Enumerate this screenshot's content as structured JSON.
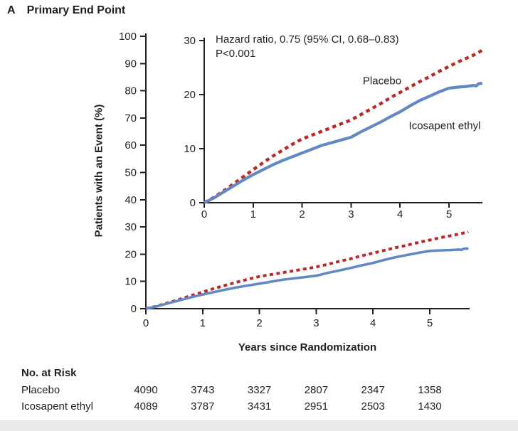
{
  "title": {
    "panel_letter": "A",
    "text": "Primary End Point"
  },
  "annotation": {
    "line1": "Hazard ratio, 0.75 (95% CI, 0.68–0.83)",
    "line2": "P<0.001"
  },
  "axes": {
    "ylabel": "Patients with an Event (%)",
    "xlabel": "Years since Randomization"
  },
  "curve_labels": {
    "placebo": "Placebo",
    "icosapent": "Icosapent ethyl"
  },
  "colors": {
    "placebo_red": "#bb2a26",
    "icosapent_blue": "#6389c5",
    "axis_and_text": "#231f20",
    "footer_band": "#e9e9e9"
  },
  "chart_data": {
    "type": "line",
    "title": "Primary End Point",
    "xlabel": "Years since Randomization",
    "ylabel": "Patients with an Event (%)",
    "legend_position": "inline-curve-labels",
    "grid": false,
    "series": [
      {
        "name": "Placebo",
        "style": "dashed",
        "color": "#bb2a26",
        "points": [
          [
            0,
            0
          ],
          [
            0.2,
            1.0
          ],
          [
            0.4,
            2.2
          ],
          [
            0.6,
            3.5
          ],
          [
            0.8,
            4.8
          ],
          [
            1.0,
            6.1
          ],
          [
            1.2,
            7.4
          ],
          [
            1.4,
            8.6
          ],
          [
            1.6,
            9.7
          ],
          [
            1.8,
            10.8
          ],
          [
            2.0,
            11.8
          ],
          [
            2.2,
            12.5
          ],
          [
            2.4,
            13.2
          ],
          [
            2.6,
            13.9
          ],
          [
            2.8,
            14.6
          ],
          [
            3.0,
            15.3
          ],
          [
            3.2,
            16.3
          ],
          [
            3.4,
            17.3
          ],
          [
            3.6,
            18.3
          ],
          [
            3.8,
            19.4
          ],
          [
            4.0,
            20.4
          ],
          [
            4.2,
            21.4
          ],
          [
            4.4,
            22.4
          ],
          [
            4.6,
            23.3
          ],
          [
            4.8,
            24.3
          ],
          [
            5.0,
            25.2
          ],
          [
            5.2,
            26.1
          ],
          [
            5.35,
            26.7
          ],
          [
            5.5,
            27.3
          ],
          [
            5.6,
            27.8
          ],
          [
            5.68,
            28.2
          ]
        ]
      },
      {
        "name": "Icosapent ethyl",
        "style": "solid",
        "color": "#6389c5",
        "points": [
          [
            0,
            0
          ],
          [
            0.2,
            0.9
          ],
          [
            0.4,
            2.0
          ],
          [
            0.6,
            3.1
          ],
          [
            0.8,
            4.2
          ],
          [
            1.0,
            5.2
          ],
          [
            1.2,
            6.1
          ],
          [
            1.4,
            7.0
          ],
          [
            1.6,
            7.8
          ],
          [
            1.8,
            8.5
          ],
          [
            2.0,
            9.2
          ],
          [
            2.2,
            9.9
          ],
          [
            2.4,
            10.6
          ],
          [
            2.6,
            11.1
          ],
          [
            2.8,
            11.6
          ],
          [
            3.0,
            12.1
          ],
          [
            3.2,
            13.1
          ],
          [
            3.4,
            14.0
          ],
          [
            3.6,
            14.9
          ],
          [
            3.8,
            15.9
          ],
          [
            4.0,
            16.8
          ],
          [
            4.2,
            17.9
          ],
          [
            4.4,
            18.9
          ],
          [
            4.6,
            19.7
          ],
          [
            4.8,
            20.5
          ],
          [
            5.0,
            21.2
          ],
          [
            5.2,
            21.4
          ],
          [
            5.35,
            21.5
          ],
          [
            5.5,
            21.7
          ],
          [
            5.56,
            21.6
          ],
          [
            5.6,
            22.0
          ],
          [
            5.68,
            22.1
          ]
        ]
      }
    ],
    "views": [
      {
        "id": "main",
        "xlim": [
          0,
          5.7
        ],
        "ylim": [
          0,
          100
        ],
        "x_ticks": [
          0,
          1,
          2,
          3,
          4,
          5
        ],
        "y_ticks": [
          0,
          10,
          20,
          30,
          40,
          50,
          60,
          70,
          80,
          90,
          100
        ]
      },
      {
        "id": "inset",
        "xlim": [
          0,
          5.7
        ],
        "ylim": [
          0,
          30
        ],
        "x_ticks": [
          0,
          1,
          2,
          3,
          4,
          5
        ],
        "y_ticks": [
          0,
          10,
          20,
          30
        ],
        "annotation": [
          "Hazard ratio, 0.75 (95% CI, 0.68–0.83)",
          "P<0.001"
        ]
      }
    ]
  },
  "risk_table": {
    "header": "No. at Risk",
    "time_points": [
      0,
      1,
      2,
      3,
      4,
      5
    ],
    "rows": [
      {
        "label": "Placebo",
        "values": [
          "4090",
          "3743",
          "3327",
          "2807",
          "2347",
          "1358"
        ]
      },
      {
        "label": "Icosapent ethyl",
        "values": [
          "4089",
          "3787",
          "3431",
          "2951",
          "2503",
          "1430"
        ]
      }
    ]
  }
}
